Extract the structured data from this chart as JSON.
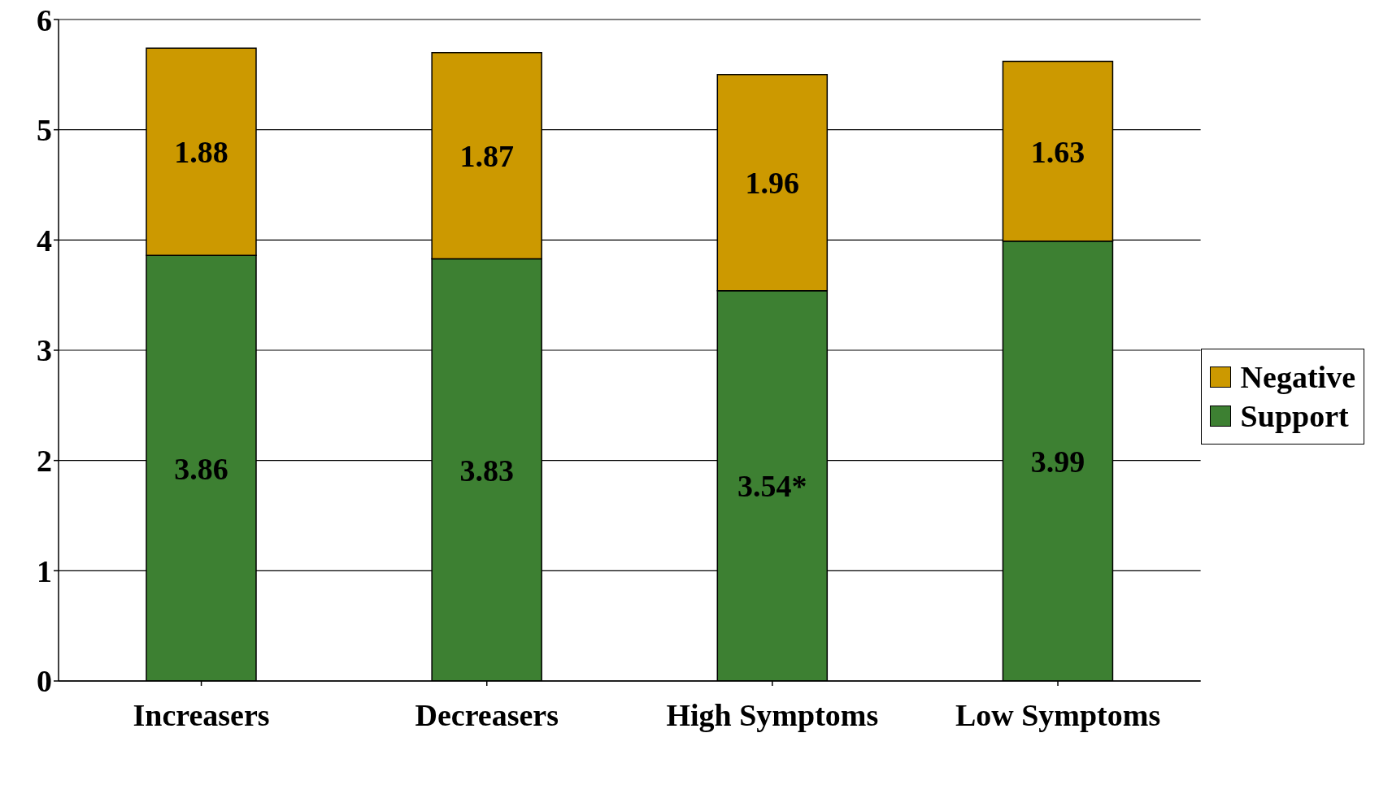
{
  "chart_data": {
    "type": "bar",
    "stacked": true,
    "categories": [
      "Increasers",
      "Decreasers",
      "High Symptoms",
      "Low Symptoms"
    ],
    "series": [
      {
        "name": "Support",
        "color": "#3d8032",
        "values": [
          3.86,
          3.83,
          3.54,
          3.99
        ],
        "value_labels": [
          "3.86",
          "3.83",
          "3.54*",
          "3.99"
        ]
      },
      {
        "name": "Negative",
        "color": "#cc9900",
        "values": [
          1.88,
          1.87,
          1.96,
          1.63
        ],
        "value_labels": [
          "1.88",
          "1.87",
          "1.96",
          "1.63"
        ]
      }
    ],
    "ylim": [
      0,
      6
    ],
    "yticks": [
      0,
      1,
      2,
      3,
      4,
      5,
      6
    ],
    "grid": "y",
    "legend": "right"
  }
}
